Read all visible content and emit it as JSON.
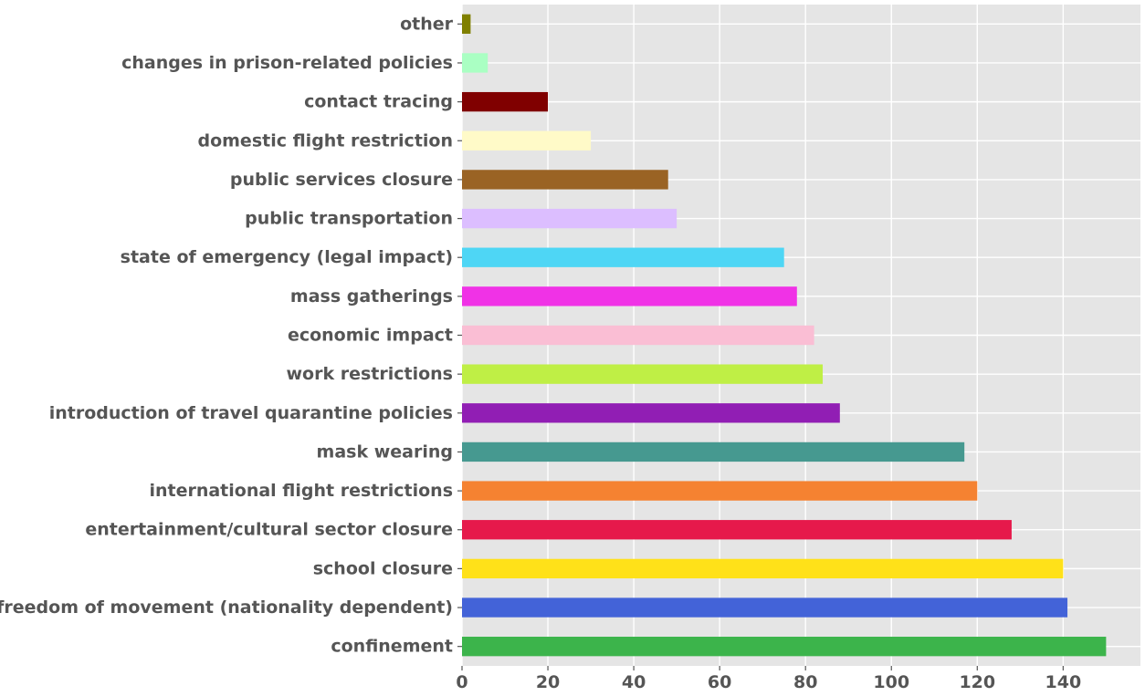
{
  "chart_data": {
    "type": "bar",
    "orientation": "horizontal",
    "title": "",
    "xlabel": "",
    "ylabel": "",
    "xlim": [
      0,
      158
    ],
    "xticks": [
      0,
      20,
      40,
      60,
      80,
      100,
      120,
      140
    ],
    "grid": true,
    "legend": "none",
    "background_color": "#e5e5e5",
    "categories": [
      "confinement",
      "freedom of movement (nationality dependent)",
      "school closure",
      "entertainment/cultural sector closure",
      "international flight restrictions",
      "mask wearing",
      "introduction of travel quarantine policies",
      "work restrictions",
      "economic impact",
      "mass gatherings",
      "state of emergency (legal impact)",
      "public transportation",
      "public services closure",
      "domestic flight restriction",
      "contact tracing",
      "changes in prison-related policies",
      "other"
    ],
    "values": [
      150,
      141,
      140,
      128,
      120,
      117,
      88,
      84,
      82,
      78,
      75,
      50,
      48,
      30,
      20,
      6,
      2
    ],
    "colors": [
      "#3cb44b",
      "#4363d8",
      "#ffe119",
      "#e6194b",
      "#f58231",
      "#469990",
      "#911eb4",
      "#bfef45",
      "#fabed4",
      "#f032e6",
      "#4ed6f5",
      "#dcbeff",
      "#9a6324",
      "#fffac8",
      "#800000",
      "#aaffc3",
      "#808000"
    ]
  }
}
